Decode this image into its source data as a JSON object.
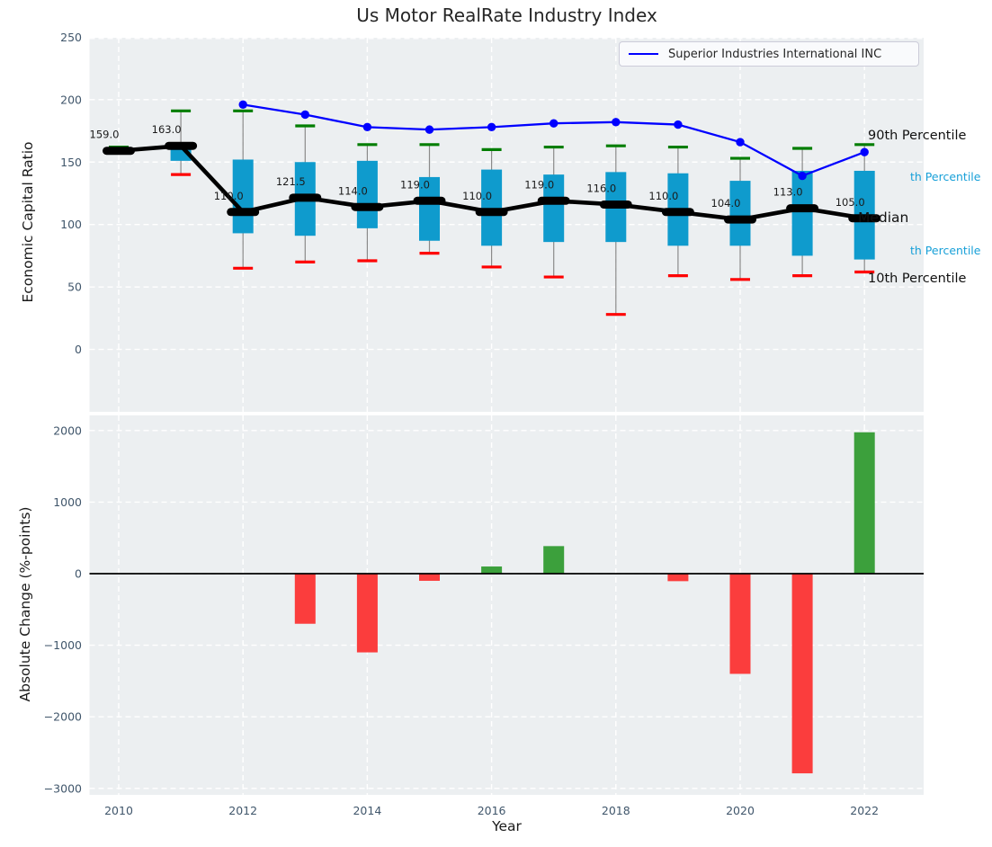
{
  "figure": {
    "title": "Us Motor RealRate Industry Index",
    "legend": {
      "label": "Superior Industries International INC"
    },
    "top_axis": {
      "ylabel": "Economic Capital Ratio",
      "yticks": [
        250,
        200,
        150,
        100,
        50,
        0
      ]
    },
    "bottom_axis": {
      "ylabel": "Absolute Change (%-points)",
      "xlabel": "Year",
      "yticks": [
        2000,
        1000,
        0,
        -1000,
        -2000,
        -3000
      ],
      "xticks": [
        2010,
        2012,
        2014,
        2016,
        2018,
        2020,
        2022
      ]
    },
    "annotations": {
      "p90": "90th Percentile",
      "p75": "th Percentile",
      "median": "Median",
      "p25": "th Percentile",
      "p10": "10th Percentile"
    },
    "colors": {
      "axes_bg": "#eceff1",
      "grid": "#ffffff",
      "tick_label": "#40566b",
      "box": "#0f9bcd",
      "whisker": "#8a8a8a",
      "whisker_high": "#007d00",
      "whisker_low": "#fe0000",
      "median": "#000000",
      "company_line": "#0000ff",
      "bar_positive": "#3ca03c",
      "bar_negative": "#fb3d3d",
      "percentile_label": "#18a0d8",
      "zero_line": "#000000"
    }
  },
  "chart_data": [
    {
      "type": "boxplot_line_combo",
      "title": "Us Motor RealRate Industry Index",
      "ylabel": "Economic Capital Ratio",
      "ylim": [
        -48,
        250
      ],
      "grid": true,
      "legend_position": "upper right",
      "x": [
        2010,
        2011,
        2012,
        2013,
        2014,
        2015,
        2016,
        2017,
        2018,
        2019,
        2020,
        2021,
        2022
      ],
      "median": [
        159.0,
        163.0,
        110.0,
        121.5,
        114.0,
        119.0,
        110.0,
        119.0,
        116.0,
        110.0,
        104.0,
        113.0,
        105.0
      ],
      "median_labels": [
        "159.0",
        "163.0",
        "110.0",
        "121.5",
        "114.0",
        "119.0",
        "110.0",
        "119.0",
        "116.0",
        "110.0",
        "104.0",
        "113.0",
        "105.0"
      ],
      "percentile_90": [
        162,
        191,
        191,
        179,
        164,
        164,
        160,
        162,
        163,
        162,
        153,
        161,
        164
      ],
      "quartile_75": [
        null,
        164,
        152,
        150,
        151,
        138,
        144,
        140,
        142,
        141,
        135,
        143,
        143
      ],
      "quartile_25": [
        null,
        151,
        93,
        91,
        97,
        87,
        83,
        86,
        86,
        83,
        83,
        75,
        72
      ],
      "percentile_10": [
        null,
        140,
        65,
        70,
        71,
        77,
        66,
        58,
        28,
        59,
        56,
        59,
        62
      ],
      "series": [
        {
          "name": "Superior Industries International INC",
          "type": "line",
          "color": "#0000ff",
          "values": [
            null,
            null,
            196,
            188,
            178,
            176,
            178,
            181,
            182,
            180,
            166,
            139,
            158
          ]
        }
      ]
    },
    {
      "type": "bar",
      "ylabel": "Absolute Change (%-points)",
      "xlabel": "Year",
      "ylim": [
        -3090,
        2240
      ],
      "grid": true,
      "x": [
        2010,
        2011,
        2012,
        2013,
        2014,
        2015,
        2016,
        2017,
        2018,
        2019,
        2020,
        2021,
        2022
      ],
      "values": [
        null,
        null,
        null,
        -700,
        -1100,
        -100,
        100,
        385,
        null,
        -105,
        -1400,
        -2790,
        1975
      ]
    }
  ]
}
